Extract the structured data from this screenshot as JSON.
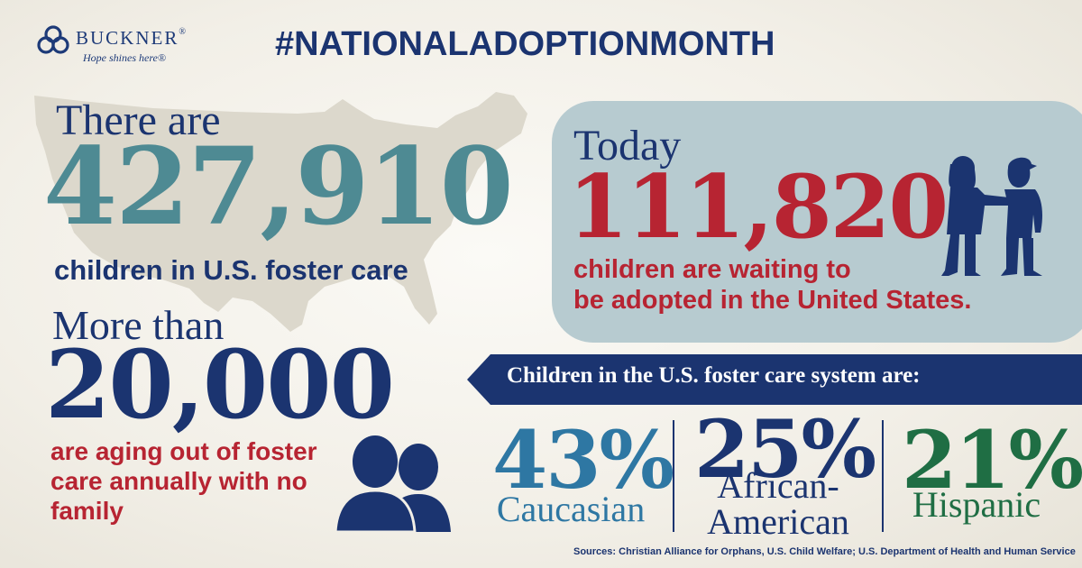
{
  "logo": {
    "name": "BUCKNER",
    "registered": "®",
    "tagline": "Hope shines here®"
  },
  "hashtag": {
    "prefix": "#NATIONAL",
    "bold": "ADOPTION",
    "suffix": "MONTH"
  },
  "foster": {
    "intro": "There are",
    "number": "427,910",
    "label": "children in U.S. foster care"
  },
  "aging": {
    "intro": "More than",
    "number": "20,000",
    "label": "are aging out of foster care annually with no family"
  },
  "waiting": {
    "intro": "Today",
    "number": "111,820",
    "label_line1": "children are waiting to",
    "label_line2": "be adopted in the United States."
  },
  "demographics": {
    "heading": "Children in the U.S. foster care system are:",
    "items": [
      {
        "value": "43%",
        "label_line1": "Caucasian",
        "label_line2": "",
        "color": "#2e77a3"
      },
      {
        "value": "25%",
        "label_line1": "African-",
        "label_line2": "American",
        "color": "#1b3470"
      },
      {
        "value": "21%",
        "label_line1": "Hispanic",
        "label_line2": "",
        "color": "#1f6e44"
      }
    ]
  },
  "sources": "Sources: Christian Alliance for Orphans, U.S. Child Welfare; U.S. Department of Health and Human Service",
  "colors": {
    "navy": "#1b3470",
    "teal": "#4e8a93",
    "red": "#b72432",
    "box": "#b7cbd0",
    "map": "#dcd8cc"
  },
  "icons": [
    "buckner-logo-icon",
    "us-map-icon",
    "two-people-icon",
    "children-silhouette-icon"
  ]
}
